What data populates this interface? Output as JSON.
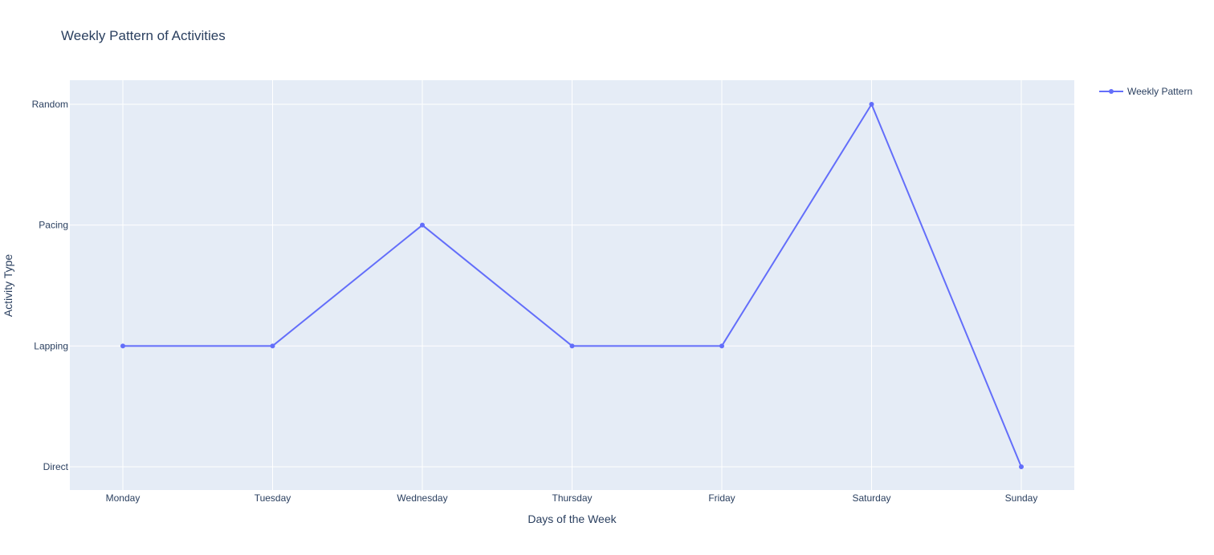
{
  "chart_data": {
    "type": "line",
    "title": "Weekly Pattern of Activities",
    "xlabel": "Days of the Week",
    "ylabel": "Activity Type",
    "categories": [
      "Monday",
      "Tuesday",
      "Wednesday",
      "Thursday",
      "Friday",
      "Saturday",
      "Sunday"
    ],
    "y_categories": [
      "Direct",
      "Lapping",
      "Pacing",
      "Random"
    ],
    "series": [
      {
        "name": "Weekly Pattern",
        "values": [
          "Lapping",
          "Lapping",
          "Pacing",
          "Lapping",
          "Lapping",
          "Random",
          "Direct"
        ],
        "color": "#636efa"
      }
    ],
    "grid": true,
    "legend_position": "top-right",
    "plot_background": "#e5ecf6",
    "grid_color": "#ffffff"
  }
}
